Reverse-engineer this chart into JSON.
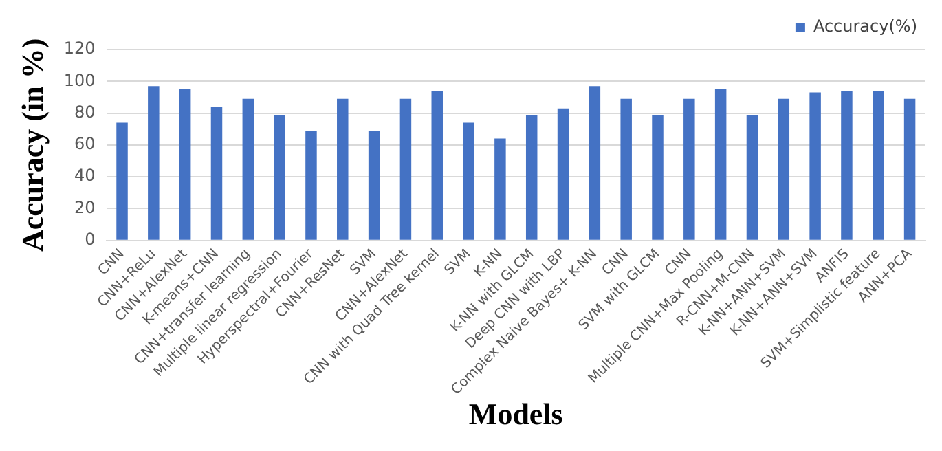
{
  "chart_data": {
    "type": "bar",
    "xlabel": "Models",
    "ylabel": "Accuracy (in %)",
    "categories": [
      "CNN",
      "CNN+ReLu",
      "CNN+AlexNet",
      "K-means+CNN",
      "CNN+transfer learning",
      "Multiple linear regression",
      "Hyperspectral+Fourier",
      "CNN+ResNet",
      "SVM",
      "CNN+AlexNet",
      "CNN with Quad Tree kernel",
      "SVM",
      "K-NN",
      "K-NN with GLCM",
      "Deep CNN with LBP",
      "Complex Naive Bayes+ K-NN",
      "CNN",
      "SVM with GLCM",
      "CNN",
      "Multiple CNN+Max Pooling",
      "R-CNN+M-CNN",
      "K-NN+ANN+SVM",
      "K-NN+ANN+SVM",
      "ANFIS",
      "SVM+Simplistic feature",
      "ANN+PCA"
    ],
    "series": [
      {
        "name": "Accuracy(%)",
        "color": "#4472c4",
        "values": [
          74,
          97,
          95,
          84,
          89,
          79,
          69,
          89,
          69,
          89,
          94,
          74,
          64,
          79,
          83,
          97,
          89,
          79,
          89,
          95,
          79,
          89,
          93,
          94,
          94,
          89
        ]
      }
    ],
    "ylim": [
      0,
      120
    ],
    "yticks": [
      0,
      20,
      40,
      60,
      80,
      100,
      120
    ],
    "grid": "y",
    "legend": "top right"
  }
}
